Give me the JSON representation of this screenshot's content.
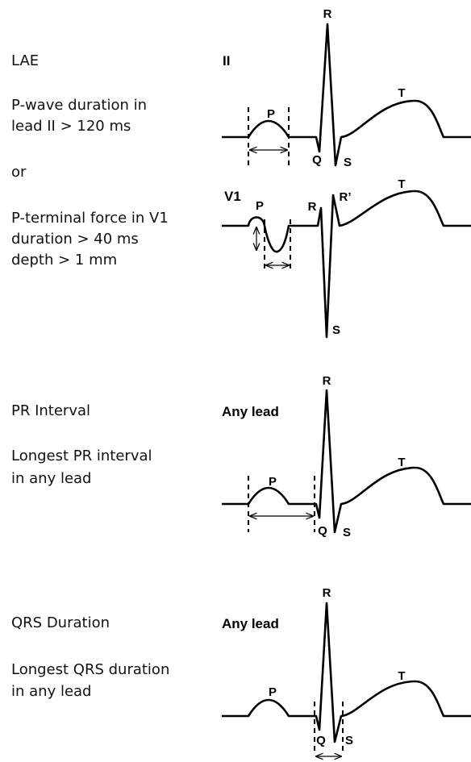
{
  "sections": [
    {
      "title": "LAE",
      "text": [
        "P-wave duration in",
        "lead II > 120 ms"
      ],
      "connector": "or",
      "text2": [
        "P-terminal force in V1",
        "duration > 40 ms",
        "depth > 1 mm"
      ],
      "leads": [
        {
          "name": "II",
          "waves": [
            "R",
            "P",
            "T",
            "Q",
            "S"
          ]
        },
        {
          "name": "V1",
          "waves": [
            "P",
            "R",
            "R’",
            "T",
            "S"
          ]
        }
      ]
    },
    {
      "title": "PR Interval",
      "text": [
        "Longest PR interval",
        "in any lead"
      ],
      "leads": [
        {
          "name": "Any lead",
          "waves": [
            "R",
            "P",
            "T",
            "Q",
            "S"
          ]
        }
      ]
    },
    {
      "title": "QRS Duration",
      "text": [
        "Longest QRS duration",
        "in any lead"
      ],
      "leads": [
        {
          "name": "Any lead",
          "waves": [
            "R",
            "P",
            "T",
            "Q",
            "S"
          ]
        }
      ]
    }
  ]
}
